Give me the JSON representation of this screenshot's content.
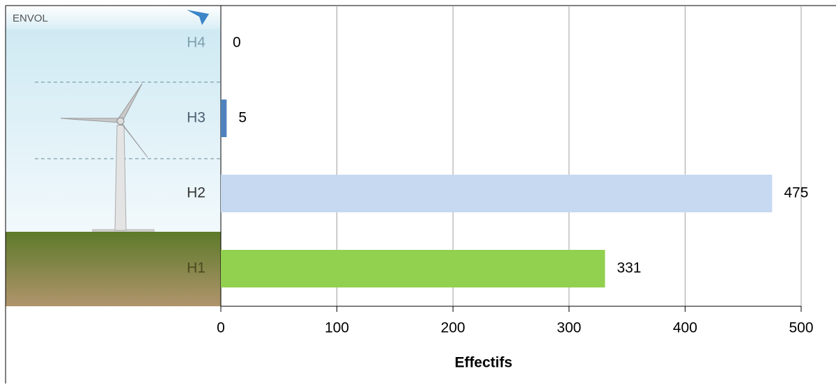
{
  "chart_data": {
    "type": "bar",
    "orientation": "horizontal",
    "logo": "ENVOL",
    "categories": [
      "H4",
      "H3",
      "H2",
      "H1"
    ],
    "values": [
      0,
      5,
      475,
      331
    ],
    "colors": [
      "#4f81bd",
      "#4f81bd",
      "#c6d9f1",
      "#92d050"
    ],
    "xlim": [
      0,
      500
    ],
    "xticks": [
      0,
      100,
      200,
      300,
      400,
      500
    ],
    "grid": true,
    "xlabel": "Effectifs"
  }
}
